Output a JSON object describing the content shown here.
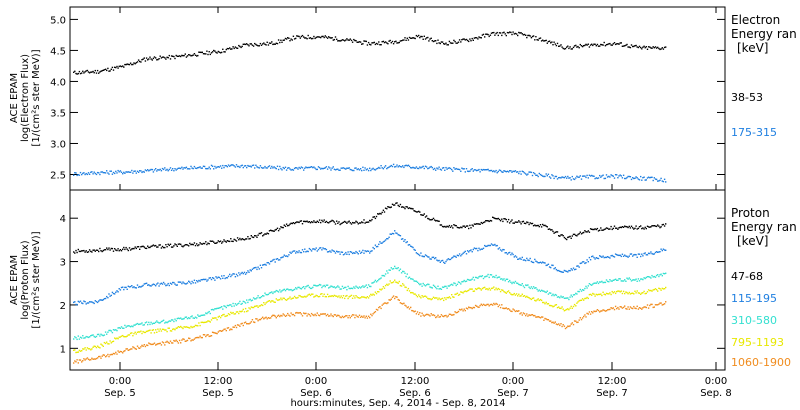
{
  "x_axis": {
    "title": "hours:minutes, Sep.  4, 2014 - Sep.  8, 2014",
    "start_hours": 0,
    "end_hours": 96,
    "ticks": [
      {
        "time": "0:00",
        "date": "Sep. 5",
        "hour": 24
      },
      {
        "time": "12:00",
        "date": "Sep. 5",
        "hour": 36
      },
      {
        "time": "0:00",
        "date": "Sep. 6",
        "hour": 48
      },
      {
        "time": "12:00",
        "date": "Sep. 6",
        "hour": 60
      },
      {
        "time": "0:00",
        "date": "Sep. 7",
        "hour": 72
      },
      {
        "time": "12:00",
        "date": "Sep. 7",
        "hour": 84
      },
      {
        "time": "0:00",
        "date": "Sep. 8",
        "hour": 96
      }
    ]
  },
  "electron_panel": {
    "ylabel_line1": "ACE EPAM",
    "ylabel_line2": "log(Electron Flux)",
    "ylabel_line3": "[1/(cm²s ster MeV)]",
    "legend_title": "Electron",
    "legend_subtitle": "Energy ran",
    "legend_unit": "[keV]",
    "yticks": [
      "2.5",
      "3.0",
      "3.5",
      "4.0",
      "4.5",
      "5.0"
    ]
  },
  "proton_panel": {
    "ylabel_line1": "ACE EPAM",
    "ylabel_line2": "log(Proton Flux)",
    "ylabel_line3": "[1/(cm²s ster MeV)]",
    "legend_title": "Proton",
    "legend_subtitle": "Energy ran",
    "legend_unit": "[keV]",
    "yticks": [
      "1",
      "2",
      "3",
      "4"
    ]
  },
  "chart_data": [
    {
      "type": "scatter",
      "panel": "electron",
      "ylim": [
        2.25,
        5.2
      ],
      "series": [
        {
          "name": "38-53",
          "color": "#000000",
          "x": [
            -4,
            0,
            4,
            8,
            12,
            16,
            20,
            24,
            28,
            32,
            36,
            40,
            44,
            48,
            52,
            56,
            60,
            64,
            68,
            72,
            76,
            80,
            84,
            88,
            92
          ],
          "y": [
            4.15,
            4.17,
            4.25,
            4.38,
            4.4,
            4.45,
            4.5,
            4.6,
            4.62,
            4.72,
            4.73,
            4.68,
            4.62,
            4.65,
            4.74,
            4.62,
            4.68,
            4.78,
            4.78,
            4.68,
            4.55,
            4.6,
            4.62,
            4.55,
            4.55
          ]
        },
        {
          "name": "175-315",
          "color": "#1f7fe0",
          "x": [
            -4,
            0,
            4,
            8,
            12,
            16,
            20,
            24,
            28,
            32,
            36,
            40,
            44,
            48,
            52,
            56,
            60,
            64,
            68,
            72,
            76,
            80,
            84,
            88,
            92
          ],
          "y": [
            2.52,
            2.54,
            2.55,
            2.57,
            2.6,
            2.62,
            2.64,
            2.65,
            2.62,
            2.6,
            2.62,
            2.6,
            2.6,
            2.65,
            2.63,
            2.6,
            2.58,
            2.57,
            2.55,
            2.5,
            2.45,
            2.47,
            2.48,
            2.45,
            2.42
          ]
        }
      ]
    },
    {
      "type": "scatter",
      "panel": "proton",
      "ylim": [
        0.5,
        4.65
      ],
      "series": [
        {
          "name": "47-68",
          "color": "#000000",
          "x": [
            -4,
            0,
            4,
            8,
            12,
            16,
            20,
            24,
            28,
            32,
            36,
            40,
            44,
            48,
            52,
            56,
            60,
            64,
            68,
            72,
            76,
            80,
            84,
            88,
            92
          ],
          "y": [
            3.25,
            3.28,
            3.3,
            3.35,
            3.38,
            3.42,
            3.48,
            3.55,
            3.7,
            3.92,
            3.95,
            3.9,
            3.95,
            4.35,
            4.15,
            3.85,
            3.8,
            4.0,
            3.92,
            3.85,
            3.55,
            3.75,
            3.8,
            3.8,
            3.85
          ]
        },
        {
          "name": "115-195",
          "color": "#1f7fe0",
          "x": [
            -4,
            0,
            4,
            8,
            12,
            16,
            20,
            24,
            28,
            32,
            36,
            40,
            44,
            48,
            52,
            56,
            60,
            64,
            68,
            72,
            76,
            80,
            84,
            88,
            92
          ],
          "y": [
            2.05,
            2.1,
            2.4,
            2.48,
            2.5,
            2.55,
            2.65,
            2.75,
            3.0,
            3.25,
            3.3,
            3.2,
            3.25,
            3.7,
            3.2,
            3.0,
            3.25,
            3.4,
            3.1,
            3.0,
            2.75,
            3.1,
            3.15,
            3.15,
            3.3
          ]
        },
        {
          "name": "310-580",
          "color": "#33e0d0",
          "x": [
            -4,
            0,
            4,
            8,
            12,
            16,
            20,
            24,
            28,
            32,
            36,
            40,
            44,
            48,
            52,
            56,
            60,
            64,
            68,
            72,
            76,
            80,
            84,
            88,
            92
          ],
          "y": [
            1.25,
            1.3,
            1.5,
            1.6,
            1.65,
            1.75,
            1.95,
            2.1,
            2.3,
            2.4,
            2.45,
            2.4,
            2.45,
            2.9,
            2.5,
            2.4,
            2.6,
            2.7,
            2.5,
            2.35,
            2.15,
            2.5,
            2.6,
            2.6,
            2.75
          ]
        },
        {
          "name": "795-1193",
          "color": "#e8e800",
          "x": [
            -4,
            0,
            4,
            8,
            12,
            16,
            20,
            24,
            28,
            32,
            36,
            40,
            44,
            48,
            52,
            56,
            60,
            64,
            68,
            72,
            76,
            80,
            84,
            88,
            92
          ],
          "y": [
            0.95,
            1.05,
            1.3,
            1.4,
            1.45,
            1.55,
            1.75,
            1.9,
            2.1,
            2.2,
            2.25,
            2.2,
            2.2,
            2.6,
            2.2,
            2.15,
            2.35,
            2.4,
            2.25,
            2.1,
            1.9,
            2.25,
            2.3,
            2.3,
            2.4
          ]
        },
        {
          "name": "1060-1900",
          "color": "#f08c1e",
          "x": [
            -4,
            0,
            4,
            8,
            12,
            16,
            20,
            24,
            28,
            32,
            36,
            40,
            44,
            48,
            52,
            56,
            60,
            64,
            68,
            72,
            76,
            80,
            84,
            88,
            92
          ],
          "y": [
            0.7,
            0.8,
            0.95,
            1.1,
            1.15,
            1.25,
            1.4,
            1.6,
            1.75,
            1.8,
            1.8,
            1.75,
            1.75,
            2.2,
            1.8,
            1.75,
            1.95,
            2.05,
            1.85,
            1.7,
            1.5,
            1.85,
            1.95,
            1.95,
            2.05
          ]
        }
      ]
    }
  ]
}
